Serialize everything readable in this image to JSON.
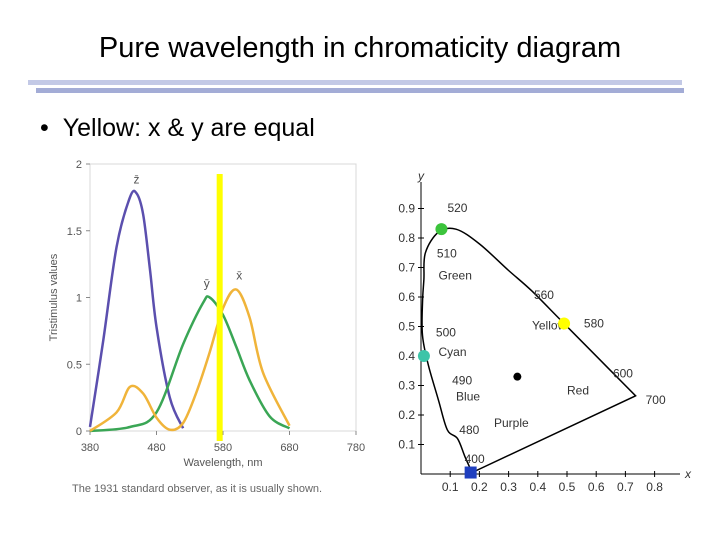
{
  "slide": {
    "title": "Pure wavelength in chromaticity diagram",
    "bullet": "Yellow: x & y are equal"
  },
  "colors": {
    "z_bar": "#5b4fae",
    "y_bar": "#3aa655",
    "x_bar": "#f0b43a",
    "marker_yellow": "#ffff00",
    "marker_green": "#3cc43c",
    "marker_cyan": "#3cc4a8",
    "marker_blue": "#1f3fbf",
    "frame": "#d8d8d8"
  },
  "chart_data": [
    {
      "type": "line",
      "title": "",
      "xlabel": "Wavelength, nm",
      "ylabel": "Tristimulus values",
      "xlim": [
        380,
        780
      ],
      "ylim": [
        0,
        2
      ],
      "x_ticks": [
        "380",
        "480",
        "580",
        "680",
        "780"
      ],
      "y_ticks": [
        "0",
        "0.5",
        "1",
        "1.5",
        "2"
      ],
      "series": [
        {
          "name": "z̄",
          "color": "#5b4fae",
          "x": [
            380,
            400,
            420,
            440,
            450,
            460,
            470,
            480,
            500,
            520
          ],
          "y": [
            0.03,
            0.68,
            1.38,
            1.75,
            1.78,
            1.62,
            1.22,
            0.78,
            0.25,
            0.02
          ]
        },
        {
          "name": "ȳ",
          "color": "#3aa655",
          "x": [
            380,
            440,
            480,
            520,
            550,
            560,
            580,
            600,
            620,
            650,
            680
          ],
          "y": [
            0,
            0.03,
            0.14,
            0.65,
            0.96,
            1.0,
            0.87,
            0.63,
            0.38,
            0.11,
            0.02
          ]
        },
        {
          "name": "x̄",
          "color": "#f0b43a",
          "x": [
            380,
            420,
            440,
            460,
            480,
            500,
            520,
            540,
            560,
            580,
            600,
            620,
            640,
            680
          ],
          "y": [
            0,
            0.14,
            0.33,
            0.28,
            0.1,
            0.01,
            0.06,
            0.29,
            0.59,
            0.92,
            1.06,
            0.85,
            0.44,
            0.04
          ]
        }
      ],
      "marker": {
        "x": 575,
        "color": "#ffff00"
      },
      "caption": "The 1931 standard observer, as it is usually shown."
    },
    {
      "type": "scatter",
      "title": "",
      "xlabel": "x",
      "ylabel": "y",
      "xlim": [
        0,
        0.8
      ],
      "ylim": [
        0,
        0.9
      ],
      "x_ticks": [
        "0.1",
        "0.2",
        "0.3",
        "0.4",
        "0.5",
        "0.6",
        "0.7",
        "0.8"
      ],
      "y_ticks": [
        "0.1",
        "0.2",
        "0.3",
        "0.4",
        "0.5",
        "0.6",
        "0.7",
        "0.8",
        "0.9"
      ],
      "locus": [
        [
          0.175,
          0.005
        ],
        [
          0.15,
          0.06
        ],
        [
          0.125,
          0.12
        ],
        [
          0.09,
          0.15
        ],
        [
          0.06,
          0.25
        ],
        [
          0.025,
          0.37
        ],
        [
          0.005,
          0.47
        ],
        [
          0.005,
          0.58
        ],
        [
          0.01,
          0.66
        ],
        [
          0.015,
          0.75
        ],
        [
          0.06,
          0.82
        ],
        [
          0.12,
          0.83
        ],
        [
          0.2,
          0.78
        ],
        [
          0.3,
          0.69
        ],
        [
          0.38,
          0.62
        ],
        [
          0.48,
          0.52
        ],
        [
          0.56,
          0.44
        ],
        [
          0.65,
          0.35
        ],
        [
          0.735,
          0.265
        ]
      ],
      "wavelength_labels": [
        {
          "text": "520",
          "x": 0.07,
          "y": 0.84
        },
        {
          "text": "510",
          "x": 0.02,
          "y": 0.72
        },
        {
          "text": "560",
          "x": 0.38,
          "y": 0.62
        },
        {
          "text": "500",
          "x": 0.01,
          "y": 0.48
        },
        {
          "text": "580",
          "x": 0.51,
          "y": 0.49
        },
        {
          "text": "490",
          "x": 0.045,
          "y": 0.31
        },
        {
          "text": "600",
          "x": 0.63,
          "y": 0.34
        },
        {
          "text": "480",
          "x": 0.09,
          "y": 0.15
        },
        {
          "text": "700",
          "x": 0.735,
          "y": 0.265
        },
        {
          "text": "400",
          "x": 0.17,
          "y": 0.004
        }
      ],
      "region_labels": [
        {
          "text": "Green",
          "x": 0.06,
          "y": 0.66
        },
        {
          "text": "Cyan",
          "x": 0.06,
          "y": 0.4
        },
        {
          "text": "Yellow",
          "x": 0.38,
          "y": 0.49
        },
        {
          "text": "Red",
          "x": 0.5,
          "y": 0.27
        },
        {
          "text": "Blue",
          "x": 0.12,
          "y": 0.25
        },
        {
          "text": "Purple",
          "x": 0.25,
          "y": 0.16
        }
      ],
      "points": [
        {
          "name": "white",
          "x": 0.33,
          "y": 0.33,
          "color": "#000000"
        },
        {
          "name": "green-520",
          "x": 0.07,
          "y": 0.83,
          "color": "#3cc43c"
        },
        {
          "name": "cyan-500",
          "x": 0.01,
          "y": 0.4,
          "color": "#3cc4a8"
        },
        {
          "name": "yellow-580",
          "x": 0.49,
          "y": 0.51,
          "color": "#ffff00"
        },
        {
          "name": "blue-400",
          "x": 0.17,
          "y": 0.005,
          "color": "#1f3fbf"
        }
      ]
    }
  ]
}
